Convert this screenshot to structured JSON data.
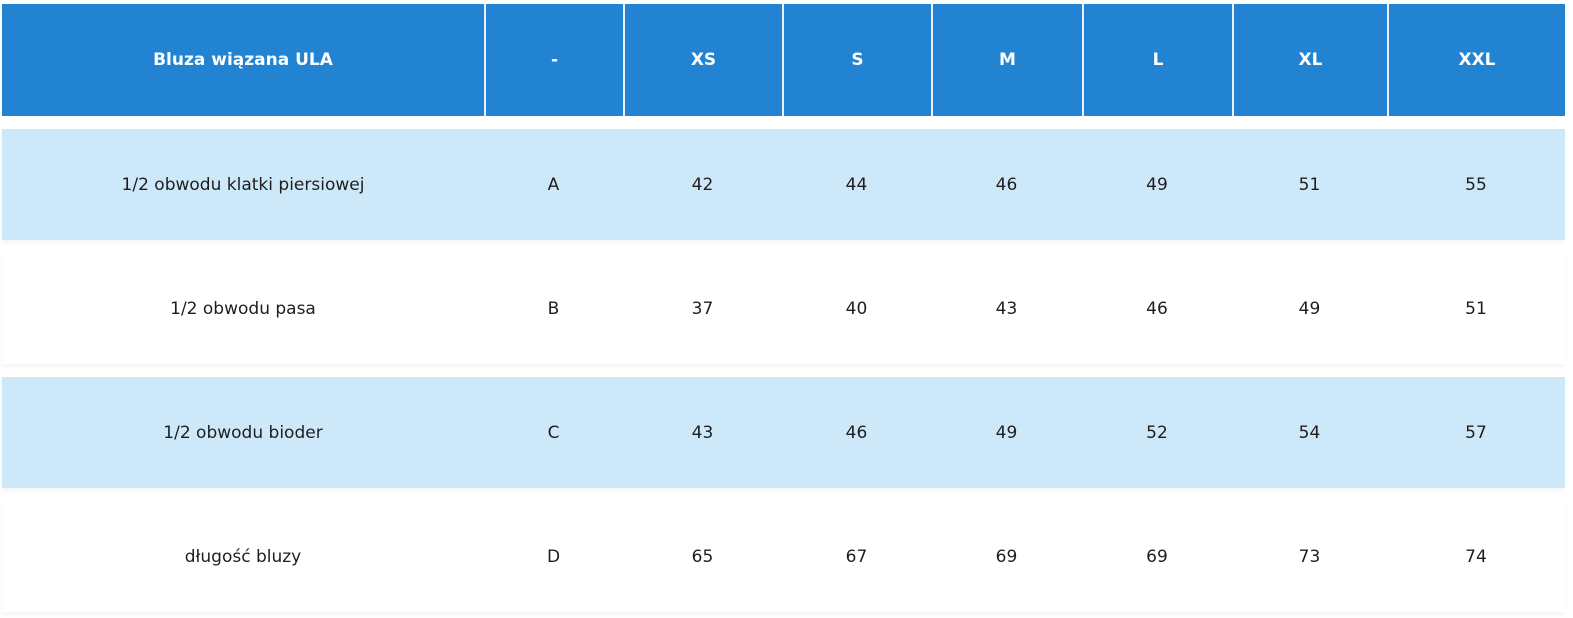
{
  "table": {
    "header": [
      "Bluza wiązana ULA",
      "-",
      "XS",
      "S",
      "M",
      "L",
      "XL",
      "XXL"
    ],
    "rows": [
      [
        "1/2 obwodu klatki piersiowej",
        "A",
        42,
        44,
        46,
        49,
        51,
        55
      ],
      [
        "1/2 obwodu pasa",
        "B",
        37,
        40,
        43,
        46,
        49,
        51
      ],
      [
        "1/2 obwodu bioder",
        "C",
        43,
        46,
        49,
        52,
        54,
        57
      ],
      [
        "długość bluzy",
        "D",
        65,
        67,
        69,
        69,
        73,
        74
      ]
    ]
  }
}
